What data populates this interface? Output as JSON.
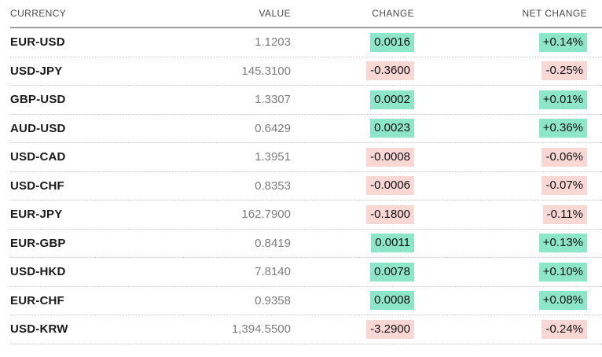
{
  "table": {
    "columns": [
      {
        "key": "currency",
        "label": "CURRENCY",
        "align": "left"
      },
      {
        "key": "value",
        "label": "VALUE",
        "align": "right"
      },
      {
        "key": "change",
        "label": "CHANGE",
        "align": "right"
      },
      {
        "key": "net_change",
        "label": "NET CHANGE",
        "align": "right"
      }
    ],
    "colors": {
      "positive_bg": "#8de6c8",
      "negative_bg": "#f8d7d5",
      "ticker_text": "#1a1a1a",
      "value_text": "#7d7d7d",
      "header_text": "#4a4a4a"
    },
    "rows": [
      {
        "currency": "EUR-USD",
        "value": "1.1203",
        "change": "0.0016",
        "net_change": "+0.14%",
        "direction": "positive"
      },
      {
        "currency": "USD-JPY",
        "value": "145.3100",
        "change": "-0.3600",
        "net_change": "-0.25%",
        "direction": "negative"
      },
      {
        "currency": "GBP-USD",
        "value": "1.3307",
        "change": "0.0002",
        "net_change": "+0.01%",
        "direction": "positive"
      },
      {
        "currency": "AUD-USD",
        "value": "0.6429",
        "change": "0.0023",
        "net_change": "+0.36%",
        "direction": "positive"
      },
      {
        "currency": "USD-CAD",
        "value": "1.3951",
        "change": "-0.0008",
        "net_change": "-0.06%",
        "direction": "negative"
      },
      {
        "currency": "USD-CHF",
        "value": "0.8353",
        "change": "-0.0006",
        "net_change": "-0.07%",
        "direction": "negative"
      },
      {
        "currency": "EUR-JPY",
        "value": "162.7900",
        "change": "-0.1800",
        "net_change": "-0.11%",
        "direction": "negative"
      },
      {
        "currency": "EUR-GBP",
        "value": "0.8419",
        "change": "0.0011",
        "net_change": "+0.13%",
        "direction": "positive"
      },
      {
        "currency": "USD-HKD",
        "value": "7.8140",
        "change": "0.0078",
        "net_change": "+0.10%",
        "direction": "positive"
      },
      {
        "currency": "EUR-CHF",
        "value": "0.9358",
        "change": "0.0008",
        "net_change": "+0.08%",
        "direction": "positive"
      },
      {
        "currency": "USD-KRW",
        "value": "1,394.5500",
        "change": "-3.2900",
        "net_change": "-0.24%",
        "direction": "negative"
      }
    ]
  }
}
